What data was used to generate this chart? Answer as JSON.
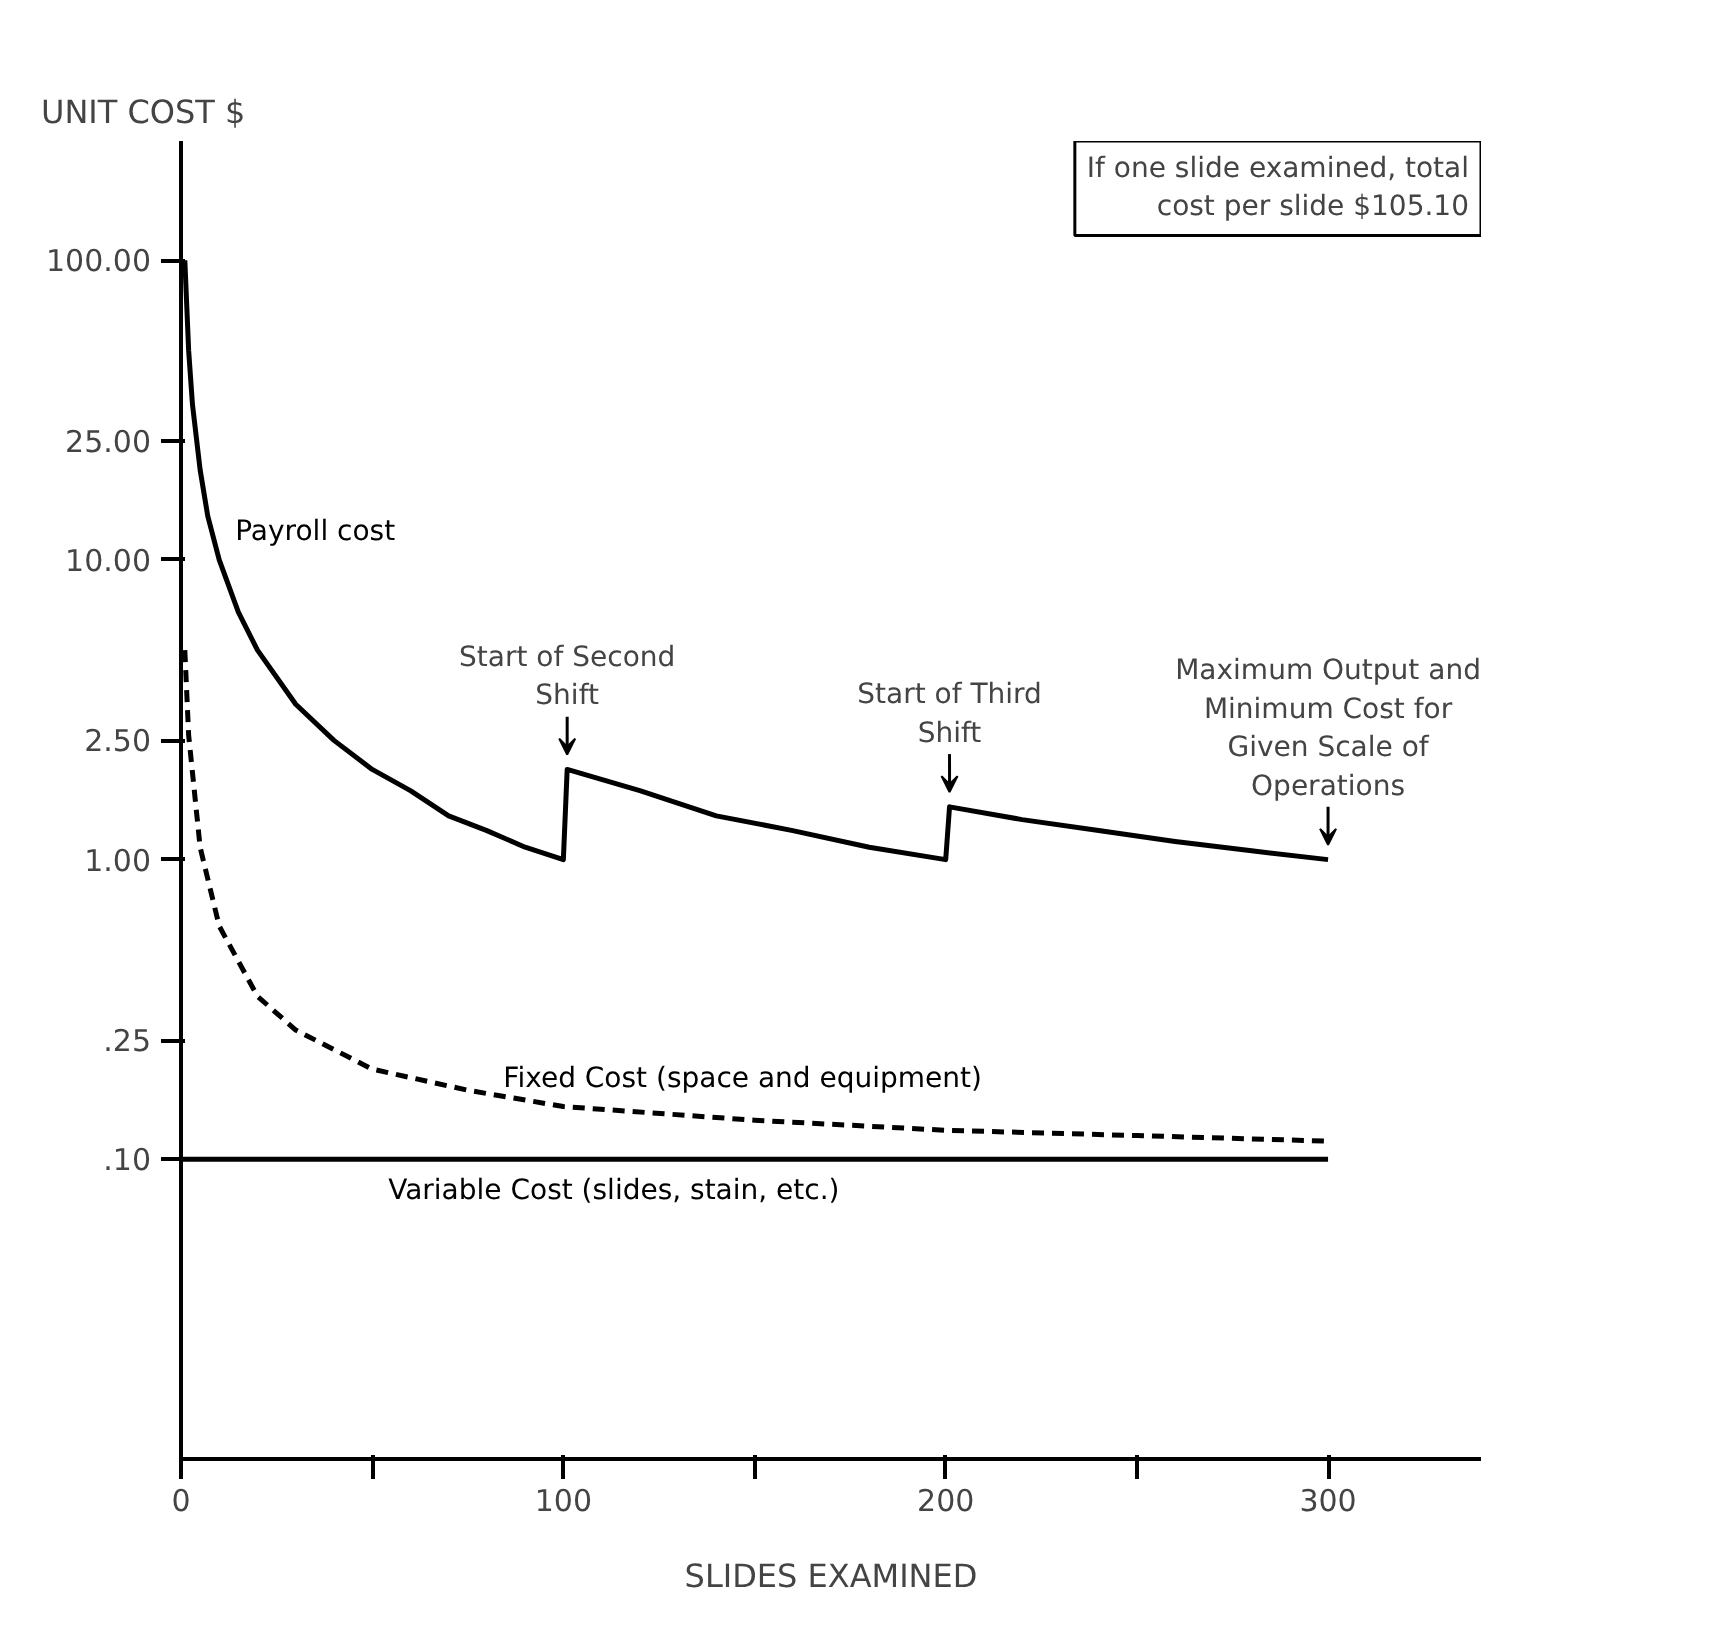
{
  "chart_data": {
    "type": "line",
    "xlabel": "SLIDES EXAMINED",
    "ylabel": "UNIT COST $",
    "log": "y",
    "xlim": [
      0,
      340
    ],
    "ylim": [
      0.01,
      250
    ],
    "xticks": [
      0,
      {
        "value": 50,
        "label": null
      },
      100,
      {
        "value": 150,
        "label": null
      },
      200,
      {
        "value": 250,
        "label": null
      },
      300
    ],
    "yticks": [
      {
        "value": 0.1,
        "label": ".10"
      },
      {
        "value": 0.25,
        "label": ".25"
      },
      {
        "value": 1,
        "label": "1.00"
      },
      {
        "value": 2.5,
        "label": "2.50"
      },
      {
        "value": 10,
        "label": "10.00"
      },
      {
        "value": 25,
        "label": "25.00"
      },
      {
        "value": 100,
        "label": "100.00"
      }
    ],
    "grid": false,
    "series": [
      {
        "name": "Payroll cost",
        "color": "#000000",
        "line_style": "solid",
        "x": [
          1,
          2,
          3,
          5,
          7,
          10,
          15,
          20,
          30,
          40,
          50,
          60,
          70,
          80,
          90,
          100,
          101,
          120,
          140,
          160,
          180,
          200,
          201,
          220,
          240,
          260,
          280,
          300
        ],
        "values": [
          100,
          50,
          33,
          20,
          14,
          10,
          6.7,
          5,
          3.3,
          2.5,
          2,
          1.7,
          1.4,
          1.25,
          1.1,
          1.0,
          2.0,
          1.7,
          1.4,
          1.25,
          1.1,
          1.0,
          1.5,
          1.36,
          1.25,
          1.15,
          1.07,
          1.0
        ]
      },
      {
        "name": "Fixed Cost (space and equipment)",
        "color": "#000000",
        "line_style": "dashed",
        "x": [
          1,
          2,
          5,
          10,
          20,
          30,
          50,
          75,
          100,
          150,
          200,
          250,
          300
        ],
        "values": [
          5,
          2.6,
          1.1,
          0.6,
          0.35,
          0.27,
          0.2,
          0.17,
          0.15,
          0.135,
          0.125,
          0.12,
          0.115
        ]
      },
      {
        "name": "Variable Cost (slides, stain, etc.)",
        "color": "#000000",
        "line_style": "solid",
        "x": [
          0,
          300
        ],
        "values": [
          0.1,
          0.1
        ]
      }
    ],
    "annotations": [
      "If one slide examined, total cost per slide $105.10",
      {
        "text": "Start of Second Shift",
        "x": 101,
        "y": 2.0
      },
      {
        "text": "Start of Third Shift",
        "x": 201,
        "y": 1.5
      },
      {
        "text": "Maximum Output and Minimum Cost for Given Scale of Operations",
        "x": 300,
        "y": 1.0
      }
    ]
  }
}
